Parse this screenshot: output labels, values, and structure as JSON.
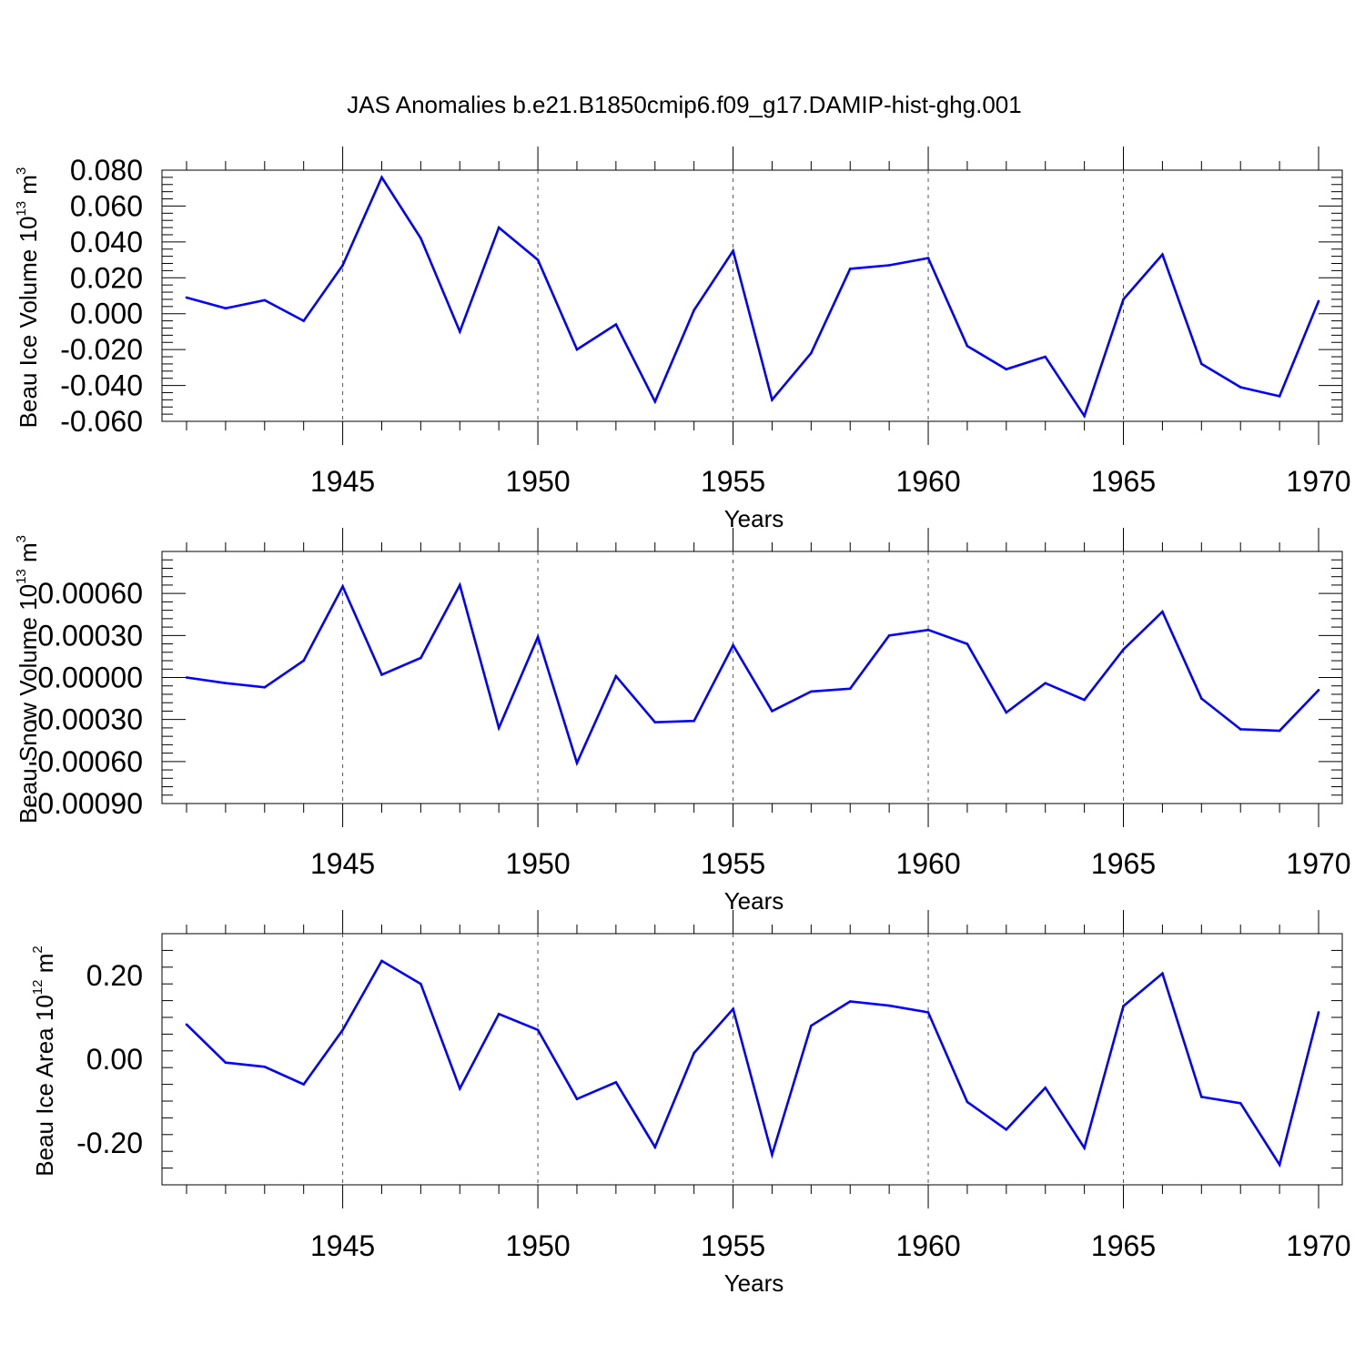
{
  "title": "JAS Anomalies b.e21.B1850cmip6.f09_g17.DAMIP-hist-ghg.001",
  "line_color": "#0000ff",
  "chart_data": [
    {
      "type": "line",
      "ylabel": "Beau Ice Volume 10",
      "ylabel_exp": "13",
      "ylabel_unit": " m",
      "ylabel_unit_exp": "3",
      "xlabel": "Years",
      "xlim": [
        1941,
        1970
      ],
      "ylim": [
        -0.06,
        0.08
      ],
      "x_ticks": [
        1945,
        1950,
        1955,
        1960,
        1965,
        1970
      ],
      "x_tick_labels": [
        "1945",
        "1950",
        "1955",
        "1960",
        "1965",
        "1970"
      ],
      "y_ticks": [
        0.08,
        0.06,
        0.04,
        0.02,
        0.0,
        -0.02,
        -0.04,
        -0.06
      ],
      "y_tick_labels": [
        "0.080",
        "0.060",
        "0.040",
        "0.020",
        "0.000",
        "-0.020",
        "-0.040",
        "-0.060"
      ],
      "x": [
        1941,
        1942,
        1943,
        1944,
        1945,
        1946,
        1947,
        1948,
        1949,
        1950,
        1951,
        1952,
        1953,
        1954,
        1955,
        1956,
        1957,
        1958,
        1959,
        1960,
        1961,
        1962,
        1963,
        1964,
        1965,
        1966,
        1967,
        1968,
        1969,
        1970
      ],
      "values": [
        0.009,
        0.003,
        0.0075,
        -0.004,
        0.027,
        0.076,
        0.042,
        -0.01,
        0.048,
        0.03,
        -0.02,
        -0.006,
        -0.049,
        0.002,
        0.035,
        -0.048,
        -0.022,
        0.025,
        0.027,
        0.031,
        -0.018,
        -0.031,
        -0.024,
        -0.057,
        0.008,
        0.033,
        -0.028,
        -0.041,
        -0.046,
        0.007
      ]
    },
    {
      "type": "line",
      "ylabel": "Beau Snow Volume 10",
      "ylabel_exp": "13",
      "ylabel_unit": " m",
      "ylabel_unit_exp": "3",
      "xlabel": "Years",
      "xlim": [
        1941,
        1970
      ],
      "ylim": [
        -0.0009,
        0.0009
      ],
      "x_ticks": [
        1945,
        1950,
        1955,
        1960,
        1965,
        1970
      ],
      "x_tick_labels": [
        "1945",
        "1950",
        "1955",
        "1960",
        "1965",
        "1970"
      ],
      "y_ticks": [
        0.0006,
        0.0003,
        0.0,
        -0.0003,
        -0.0006,
        -0.0009
      ],
      "y_tick_labels": [
        "0.00060",
        "0.00030",
        "0.00000",
        "-0.00030",
        "-0.00060",
        "-0.00090"
      ],
      "x": [
        1941,
        1942,
        1943,
        1944,
        1945,
        1946,
        1947,
        1948,
        1949,
        1950,
        1951,
        1952,
        1953,
        1954,
        1955,
        1956,
        1957,
        1958,
        1959,
        1960,
        1961,
        1962,
        1963,
        1964,
        1965,
        1966,
        1967,
        1968,
        1969,
        1970
      ],
      "values": [
        0.0,
        -4e-05,
        -7e-05,
        0.00012,
        0.00065,
        2e-05,
        0.00014,
        0.00066,
        -0.00036,
        0.00029,
        -0.00061,
        1e-05,
        -0.00032,
        -0.00031,
        0.00023,
        -0.00024,
        -0.0001,
        -8e-05,
        0.0003,
        0.00034,
        0.00024,
        -0.00025,
        -4e-05,
        -0.00016,
        0.0002,
        0.00047,
        -0.00015,
        -0.00037,
        -0.00038,
        -9e-05
      ]
    },
    {
      "type": "line",
      "ylabel": "Beau Ice Area 10",
      "ylabel_exp": "12",
      "ylabel_unit": " m",
      "ylabel_unit_exp": "2",
      "xlabel": "Years",
      "xlim": [
        1941,
        1970
      ],
      "ylim": [
        -0.3,
        0.3
      ],
      "x_ticks": [
        1945,
        1950,
        1955,
        1960,
        1965,
        1970
      ],
      "x_tick_labels": [
        "1945",
        "1950",
        "1955",
        "1960",
        "1965",
        "1970"
      ],
      "y_ticks": [
        0.2,
        0.0,
        -0.2
      ],
      "y_tick_labels": [
        "0.20",
        "0.00",
        "-0.20"
      ],
      "x": [
        1941,
        1942,
        1943,
        1944,
        1945,
        1946,
        1947,
        1948,
        1949,
        1950,
        1951,
        1952,
        1953,
        1954,
        1955,
        1956,
        1957,
        1958,
        1959,
        1960,
        1961,
        1962,
        1963,
        1964,
        1965,
        1966,
        1967,
        1968,
        1969,
        1970
      ],
      "values": [
        0.083,
        -0.008,
        -0.018,
        -0.06,
        0.07,
        0.235,
        0.18,
        -0.07,
        0.108,
        0.07,
        -0.095,
        -0.055,
        -0.21,
        0.015,
        0.12,
        -0.228,
        0.08,
        0.138,
        0.128,
        0.112,
        -0.102,
        -0.168,
        -0.068,
        -0.212,
        0.127,
        0.205,
        -0.09,
        -0.105,
        -0.252,
        0.112
      ]
    }
  ]
}
